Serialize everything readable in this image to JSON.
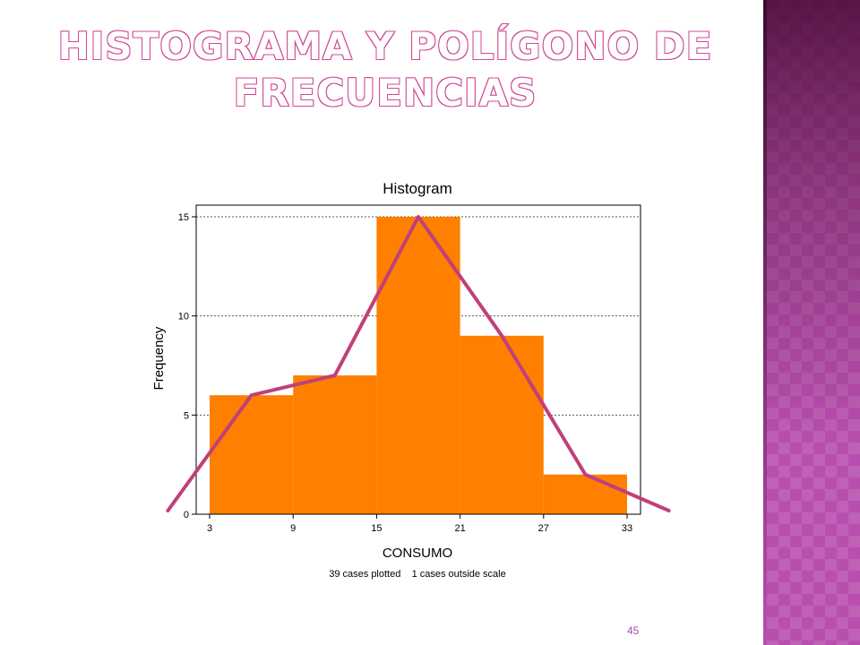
{
  "slide": {
    "title_line1": "HISTOGRAMA Y POLÍGONO DE",
    "title_line2": "FRECUENCIAS",
    "page_number": "45",
    "colors": {
      "title": "#d04a98",
      "side_band": "#b84fae"
    }
  },
  "chart_data": {
    "type": "bar",
    "title": "Histogram",
    "xlabel": "CONSUMO",
    "ylabel": "Frequency",
    "footnote": "39 cases plotted    1 cases outside scale",
    "bins": [
      {
        "start": 3,
        "end": 9,
        "value": 6
      },
      {
        "start": 9,
        "end": 15,
        "value": 7
      },
      {
        "start": 15,
        "end": 21,
        "value": 15
      },
      {
        "start": 21,
        "end": 27,
        "value": 9
      },
      {
        "start": 27,
        "end": 33,
        "value": 2
      }
    ],
    "xlim": [
      3,
      33
    ],
    "ylim": [
      0,
      15
    ],
    "x_ticks": [
      "3",
      "9",
      "15",
      "21",
      "27",
      "33"
    ],
    "y_ticks": [
      "0",
      "5",
      "10",
      "15"
    ],
    "grid": "horizontal-dotted",
    "bar_color": "#ff7f00",
    "polygon": {
      "color": "#c0407a",
      "points": [
        {
          "x": 0,
          "y": 0
        },
        {
          "x": 6,
          "y": 6
        },
        {
          "x": 12,
          "y": 7
        },
        {
          "x": 18,
          "y": 15
        },
        {
          "x": 24,
          "y": 9
        },
        {
          "x": 30,
          "y": 2
        },
        {
          "x": 36,
          "y": 0
        }
      ]
    }
  }
}
